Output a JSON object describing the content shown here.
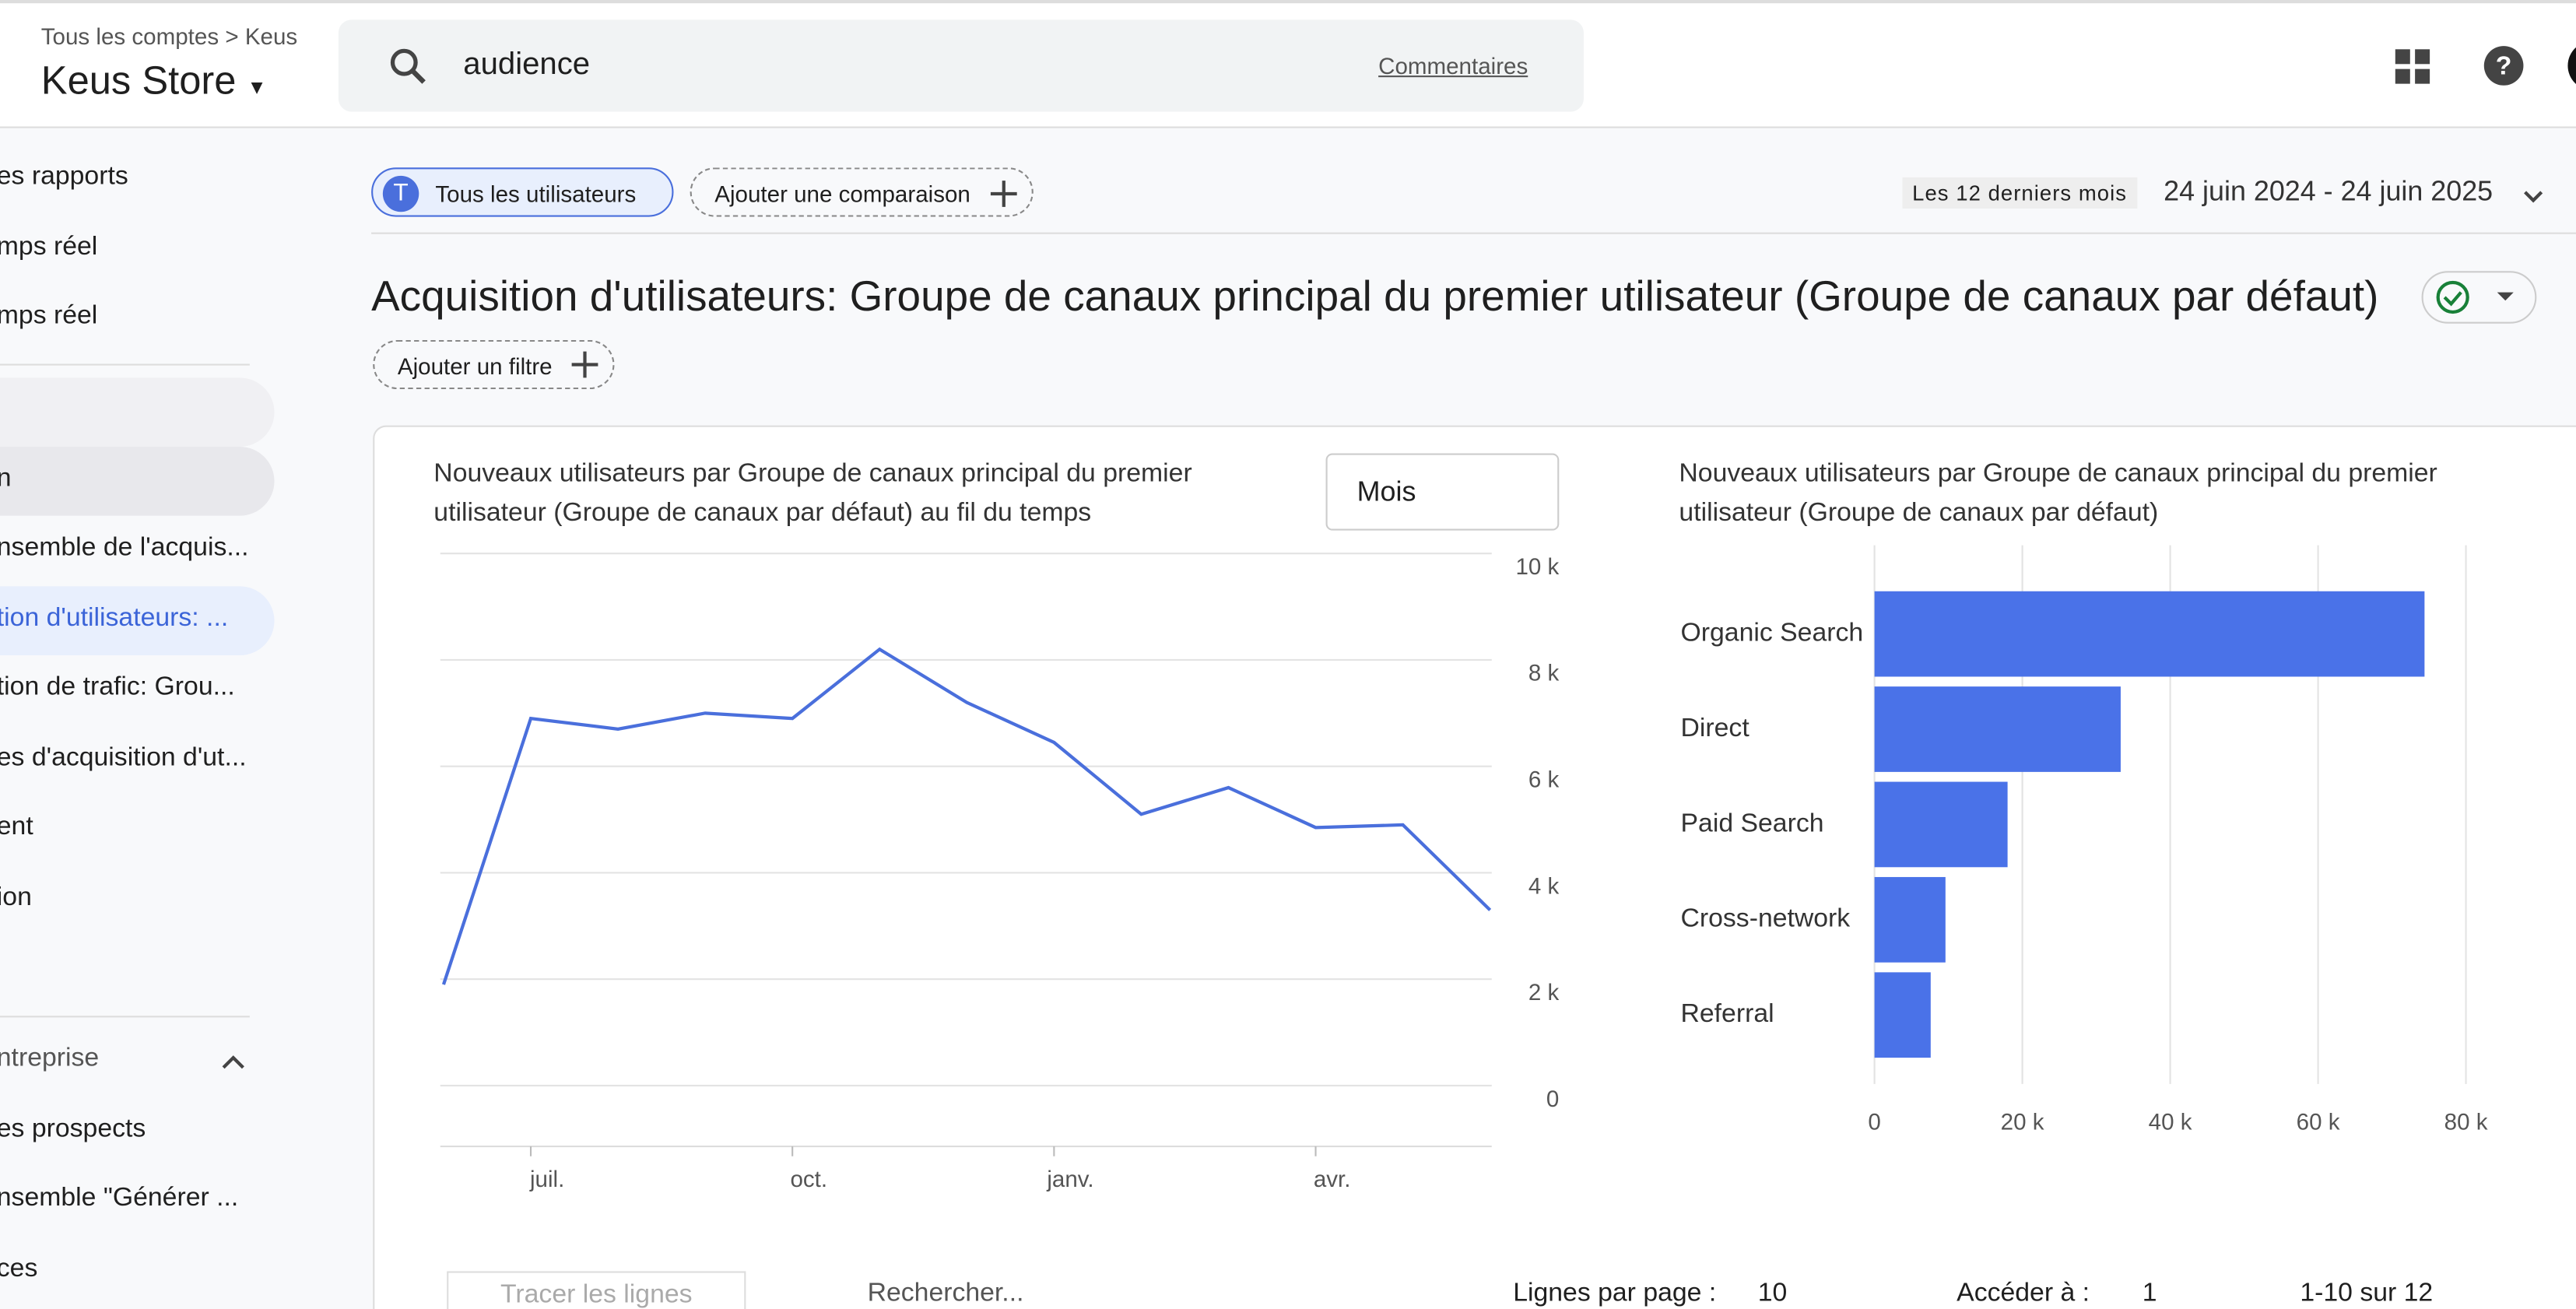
{
  "header": {
    "breadcrumb": [
      "Tous les comptes",
      "Keus"
    ],
    "property": "Keus Store",
    "search": "audience",
    "feedback": "Commentaires"
  },
  "sidebar": {
    "items": [
      "es rapports",
      "mps réel",
      "mps réel",
      "n",
      "nsemble de l'acquis...",
      "tion d'utilisateurs: ...",
      "tion de trafic: Grou...",
      "es d'acquisition d'ut...",
      "ent",
      "ion",
      "ntreprise",
      "es prospects",
      "nsemble \"Générer ...",
      "ces"
    ]
  },
  "toolbar": {
    "segment_initial": "T",
    "segment": "Tous les utilisateurs",
    "compare": "Ajouter une comparaison",
    "range_label": "Les 12 derniers mois",
    "range": "24 juin 2024 - 24 juin 2025"
  },
  "report": {
    "title": "Acquisition d'utilisateurs: Groupe de canaux principal du premier utilisateur (Groupe de canaux par défaut)",
    "filter": "Ajouter un filtre",
    "period": "Mois"
  },
  "chart_data": [
    {
      "type": "line",
      "title": "Nouveaux utilisateurs par Groupe de canaux principal du premier utilisateur (Groupe de canaux par défaut) au fil du temps",
      "categories": [
        null,
        "juil.",
        null,
        null,
        "oct.",
        null,
        null,
        "janv.",
        null,
        null,
        "avr.",
        null,
        null
      ],
      "values": [
        1900,
        6900,
        6700,
        7000,
        6900,
        8200,
        7200,
        6450,
        5100,
        5600,
        4850,
        4900,
        3300
      ],
      "color": "#4a6fdc",
      "ylim": [
        0,
        10000
      ],
      "yticks": [
        0,
        {
          "value": 2000,
          "label": "2 k"
        },
        {
          "value": 4000,
          "label": "4 k"
        },
        {
          "value": 6000,
          "label": "6 k"
        },
        {
          "value": 8000,
          "label": "8 k"
        },
        {
          "value": 10000,
          "label": "10 k"
        }
      ],
      "grid": true
    },
    {
      "type": "bar",
      "title": "Nouveaux utilisateurs par Groupe de canaux principal du premier utilisateur (Groupe de canaux par défaut)",
      "categories": [
        "Organic Search",
        "Direct",
        "Paid Search",
        "Cross-network",
        "Referral"
      ],
      "values": [
        74400,
        33300,
        18000,
        9600,
        7600
      ],
      "color": "#4a72e8",
      "xlim": [
        0,
        80000
      ],
      "xticks": [
        0,
        {
          "value": 20000,
          "label": "20 k"
        },
        {
          "value": 40000,
          "label": "40 k"
        },
        {
          "value": 60000,
          "label": "60 k"
        },
        {
          "value": 80000,
          "label": "80 k"
        }
      ],
      "grid": true
    }
  ],
  "table_bar": {
    "plot": "Tracer les lignes",
    "search": "Rechercher...",
    "rows_label": "Lignes par page :",
    "rows": "10",
    "goto_label": "Accéder à :",
    "goto": "1",
    "pagination": "1-10 sur 12"
  }
}
